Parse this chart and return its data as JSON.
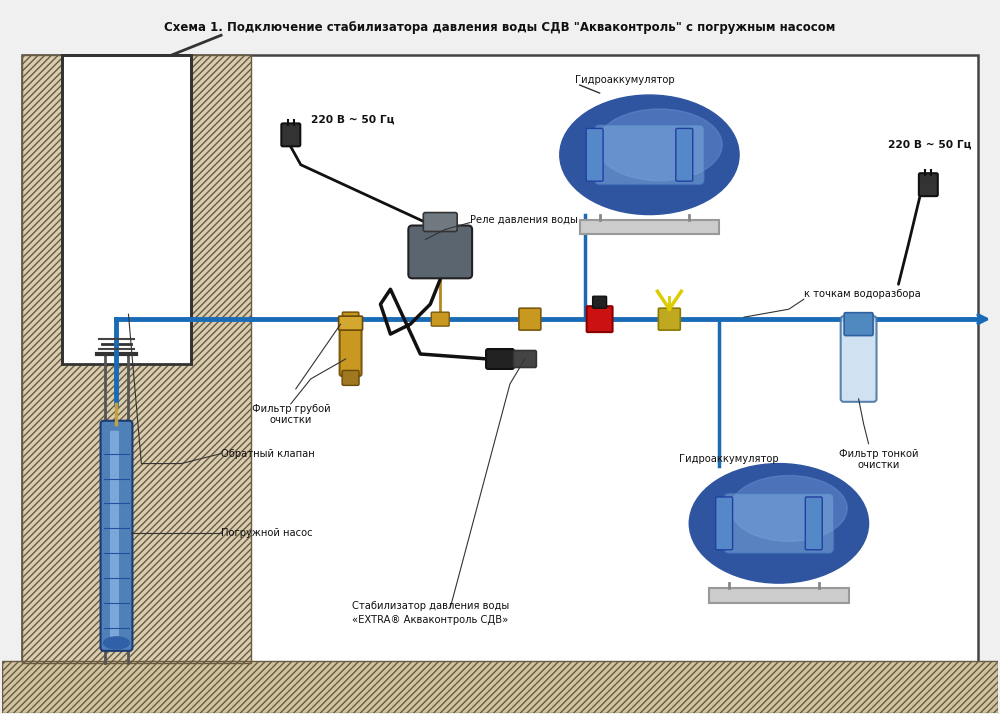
{
  "title": "Схема 1. Подключение стабилизатора давления воды СДВ \"Акваконтроль\" с погружным насосом",
  "bg_color": "#f0f0f0",
  "diagram_bg": "#ffffff",
  "pipe_color": "#1a6bb5",
  "wire_color": "#111111",
  "labels": {
    "voltage_left": "220 В ~ 50 Гц",
    "voltage_right": "220 В ~ 50 Гц",
    "relay": "Реле давления воды",
    "hydro_top": "Гидроаккумулятор",
    "hydro_bottom": "Гидроаккумулятор",
    "filter_rough": "Фильтр грубой\nочистки",
    "filter_fine": "Фильтр тонкой\nочистки",
    "check_valve": "Обратный клапан",
    "pump": "Погружной насос",
    "stabilizer": "Стабилизатор давления воды\n«EXTRA® Акваконтроль СДВ»",
    "water_points": "к точкам водоразбора"
  }
}
